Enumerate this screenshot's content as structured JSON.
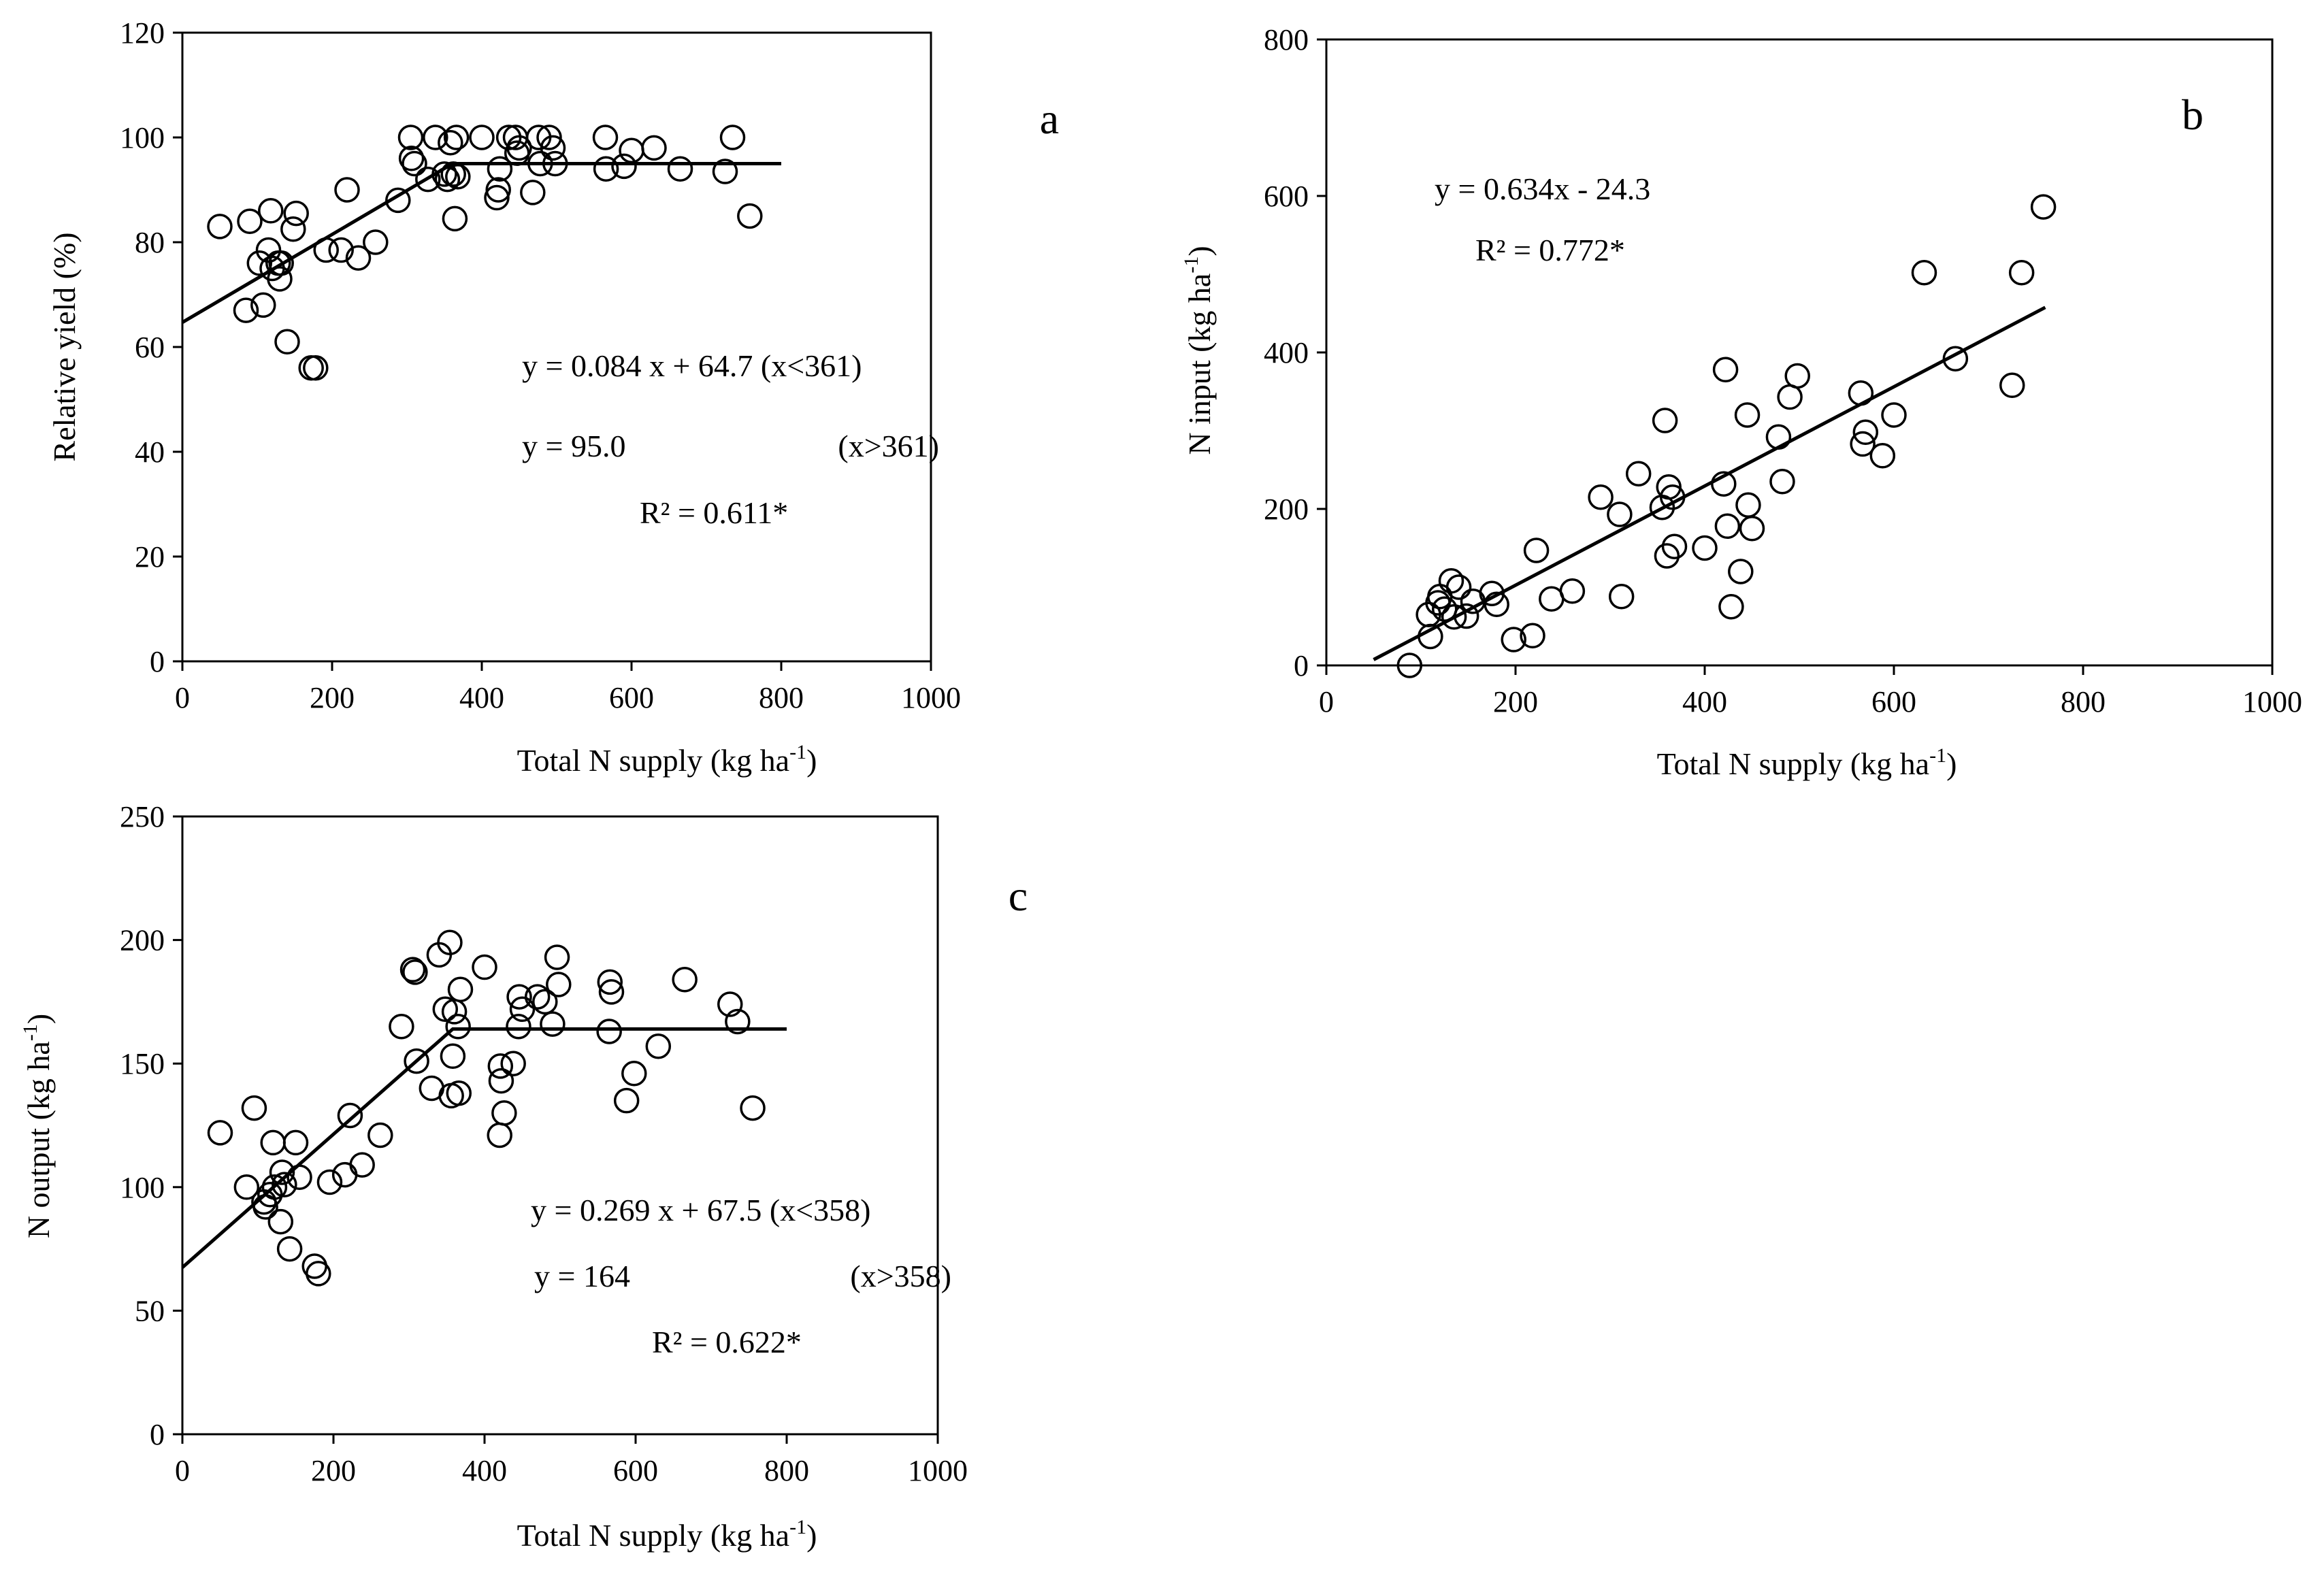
{
  "chart_data": [
    {
      "id": "a",
      "type": "scatter",
      "panel_label": "a",
      "xlabel": "Total N supply (kg ha",
      "xlabel_sup": "-1",
      "xlabel_end": ")",
      "ylabel": "Relative yield (%)",
      "ylabel_sup": "",
      "ylabel_end": "",
      "xlim": [
        0,
        1000
      ],
      "ylim": [
        0,
        120
      ],
      "xticks": [
        0,
        200,
        400,
        600,
        800,
        1000
      ],
      "yticks": [
        0,
        20,
        40,
        60,
        80,
        100,
        120
      ],
      "equations": [
        "y = 0.084 x + 64.7 (x<361)",
        "y = 95.0",
        "(x>361)",
        "R² = 0.611*"
      ],
      "fit": {
        "kind": "linear-plateau",
        "slope": 0.084,
        "intercept": 64.7,
        "breakpoint": 361,
        "plateau": 95.0,
        "x_range": [
          0,
          800
        ]
      },
      "points": [
        [
          50,
          83
        ],
        [
          85,
          67
        ],
        [
          90,
          84
        ],
        [
          103,
          76
        ],
        [
          108,
          68
        ],
        [
          115,
          78.5
        ],
        [
          118,
          86
        ],
        [
          120,
          75
        ],
        [
          128,
          76
        ],
        [
          130,
          73
        ],
        [
          132,
          76
        ],
        [
          140,
          61
        ],
        [
          148,
          82.5
        ],
        [
          152,
          85.5
        ],
        [
          172,
          56
        ],
        [
          178,
          56
        ],
        [
          192,
          78.5
        ],
        [
          212,
          78.5
        ],
        [
          220,
          90
        ],
        [
          235,
          77
        ],
        [
          258,
          80
        ],
        [
          288,
          88
        ],
        [
          305,
          100
        ],
        [
          306,
          96
        ],
        [
          310,
          95
        ],
        [
          328,
          92
        ],
        [
          338,
          100
        ],
        [
          350,
          93
        ],
        [
          354,
          92
        ],
        [
          358,
          99
        ],
        [
          362,
          93
        ],
        [
          364,
          84.5
        ],
        [
          366,
          100
        ],
        [
          368,
          92.5
        ],
        [
          400,
          100
        ],
        [
          420,
          88.5
        ],
        [
          422,
          90
        ],
        [
          424,
          94
        ],
        [
          436,
          100
        ],
        [
          445,
          100
        ],
        [
          447,
          97
        ],
        [
          450,
          98
        ],
        [
          468,
          89.5
        ],
        [
          476,
          100
        ],
        [
          478,
          95
        ],
        [
          490,
          100
        ],
        [
          495,
          98
        ],
        [
          498,
          95
        ],
        [
          565,
          100
        ],
        [
          566,
          94
        ],
        [
          590,
          94.5
        ],
        [
          600,
          97.5
        ],
        [
          630,
          98
        ],
        [
          665,
          94
        ],
        [
          725,
          93.5
        ],
        [
          735,
          100
        ],
        [
          758,
          85
        ]
      ]
    },
    {
      "id": "b",
      "type": "scatter",
      "panel_label": "b",
      "xlabel": "Total N supply (kg ha",
      "xlabel_sup": "-1",
      "xlabel_end": ")",
      "ylabel": "N input (kg ha",
      "ylabel_sup": "-1",
      "ylabel_end": ")",
      "xlim": [
        0,
        1000
      ],
      "ylim": [
        0,
        800
      ],
      "xticks": [
        0,
        200,
        400,
        600,
        800,
        1000
      ],
      "yticks": [
        0,
        200,
        400,
        600,
        800
      ],
      "equations": [
        "y = 0.634x - 24.3",
        "R² = 0.772*"
      ],
      "fit": {
        "kind": "linear",
        "slope": 0.634,
        "intercept": -24.3,
        "x_range": [
          50,
          760
        ]
      },
      "points": [
        [
          88,
          0
        ],
        [
          108,
          65
        ],
        [
          110,
          37
        ],
        [
          118,
          80
        ],
        [
          120,
          88
        ],
        [
          125,
          72
        ],
        [
          132,
          108
        ],
        [
          135,
          62
        ],
        [
          140,
          100
        ],
        [
          148,
          63
        ],
        [
          155,
          82
        ],
        [
          175,
          92
        ],
        [
          180,
          78
        ],
        [
          198,
          33
        ],
        [
          218,
          38
        ],
        [
          222,
          147
        ],
        [
          238,
          85
        ],
        [
          260,
          95
        ],
        [
          290,
          215
        ],
        [
          310,
          193
        ],
        [
          312,
          88
        ],
        [
          330,
          245
        ],
        [
          355,
          202
        ],
        [
          358,
          313
        ],
        [
          360,
          140
        ],
        [
          362,
          228
        ],
        [
          366,
          215
        ],
        [
          368,
          152
        ],
        [
          400,
          150
        ],
        [
          420,
          232
        ],
        [
          422,
          378
        ],
        [
          424,
          178
        ],
        [
          428,
          75
        ],
        [
          438,
          120
        ],
        [
          445,
          320
        ],
        [
          446,
          205
        ],
        [
          450,
          175
        ],
        [
          478,
          292
        ],
        [
          482,
          235
        ],
        [
          490,
          343
        ],
        [
          498,
          370
        ],
        [
          565,
          348
        ],
        [
          567,
          283
        ],
        [
          570,
          298
        ],
        [
          588,
          268
        ],
        [
          600,
          320
        ],
        [
          632,
          502
        ],
        [
          665,
          392
        ],
        [
          725,
          358
        ],
        [
          735,
          502
        ],
        [
          758,
          586
        ]
      ]
    },
    {
      "id": "c",
      "type": "scatter",
      "panel_label": "c",
      "xlabel": "Total N supply (kg ha",
      "xlabel_sup": "-1",
      "xlabel_end": ")",
      "ylabel": "N output (kg ha",
      "ylabel_sup": "-1",
      "ylabel_end": ")",
      "xlim": [
        0,
        1000
      ],
      "ylim": [
        0,
        250
      ],
      "xticks": [
        0,
        200,
        400,
        600,
        800,
        1000
      ],
      "yticks": [
        0,
        50,
        100,
        150,
        200,
        250
      ],
      "equations": [
        "y = 0.269 x + 67.5  (x<358)",
        "y = 164",
        "(x>358)",
        "R² = 0.622*"
      ],
      "fit": {
        "kind": "linear-plateau",
        "slope": 0.269,
        "intercept": 67.5,
        "breakpoint": 358,
        "plateau": 164,
        "x_range": [
          0,
          800
        ]
      },
      "points": [
        [
          50,
          122
        ],
        [
          85,
          100
        ],
        [
          95,
          132
        ],
        [
          108,
          94
        ],
        [
          110,
          92
        ],
        [
          116,
          97
        ],
        [
          120,
          118
        ],
        [
          122,
          100
        ],
        [
          130,
          86
        ],
        [
          132,
          106
        ],
        [
          135,
          101
        ],
        [
          142,
          75
        ],
        [
          150,
          118
        ],
        [
          155,
          104
        ],
        [
          175,
          68
        ],
        [
          180,
          65
        ],
        [
          195,
          102
        ],
        [
          215,
          105
        ],
        [
          222,
          129
        ],
        [
          238,
          109
        ],
        [
          262,
          121
        ],
        [
          290,
          165
        ],
        [
          305,
          188
        ],
        [
          308,
          187
        ],
        [
          310,
          151
        ],
        [
          330,
          140
        ],
        [
          340,
          194
        ],
        [
          348,
          172
        ],
        [
          354,
          199
        ],
        [
          356,
          137
        ],
        [
          358,
          153
        ],
        [
          360,
          171
        ],
        [
          365,
          165
        ],
        [
          366,
          138
        ],
        [
          368,
          180
        ],
        [
          400,
          189
        ],
        [
          420,
          121
        ],
        [
          421,
          149
        ],
        [
          422,
          143
        ],
        [
          426,
          130
        ],
        [
          438,
          150
        ],
        [
          445,
          165
        ],
        [
          446,
          177
        ],
        [
          450,
          172
        ],
        [
          470,
          177
        ],
        [
          480,
          175
        ],
        [
          490,
          166
        ],
        [
          496,
          193
        ],
        [
          498,
          182
        ],
        [
          565,
          163
        ],
        [
          566,
          183
        ],
        [
          568,
          179
        ],
        [
          588,
          135
        ],
        [
          598,
          146
        ],
        [
          630,
          157
        ],
        [
          665,
          184
        ],
        [
          725,
          174
        ],
        [
          735,
          167
        ],
        [
          755,
          132
        ]
      ]
    }
  ]
}
